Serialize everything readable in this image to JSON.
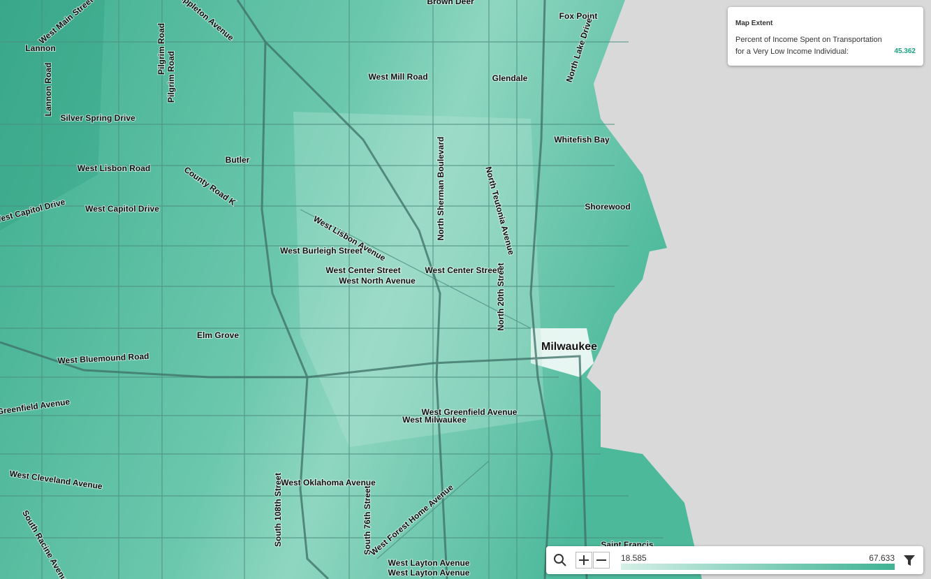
{
  "info_panel": {
    "title": "Map Extent",
    "description": "Percent of Income Spent on Transportation for a Very Low Income Individual:",
    "value": "45.362"
  },
  "legend": {
    "min": "18.585",
    "max": "67.633"
  },
  "labels": [
    "Brown Deer",
    "Fox Point",
    "West Main Street",
    "Lannon",
    "Lannon Road",
    "Pilgrim Road",
    "Pilgrim Road",
    "Appleton Avenue",
    "North Lake Drive",
    "West Mill Road",
    "Glendale",
    "Silver Spring Drive",
    "Whitefish Bay",
    "Butler",
    "West Lisbon Road",
    "County Road K",
    "North Sherman Boulevard",
    "North Teutonia Avenue",
    "Shorewood",
    "West Capitol Drive",
    "West Capitol Drive",
    "West Lisbon Avenue",
    "West Burleigh Street",
    "West Center Street",
    "West Center Street",
    "West North Avenue",
    "North 20th Street",
    "Milwaukee",
    "Elm Grove",
    "West Bluemound Road",
    "Greenfield Avenue",
    "West Greenfield Avenue",
    "West Milwaukee",
    "West Oklahoma Avenue",
    "South 108th Street",
    "South 76th Street",
    "West Forest Home Avenue",
    "West Cleveland Avenue",
    "South Racine Avenue",
    "Saint Francis",
    "West Layton Avenue",
    "West Layton Avenue"
  ]
}
